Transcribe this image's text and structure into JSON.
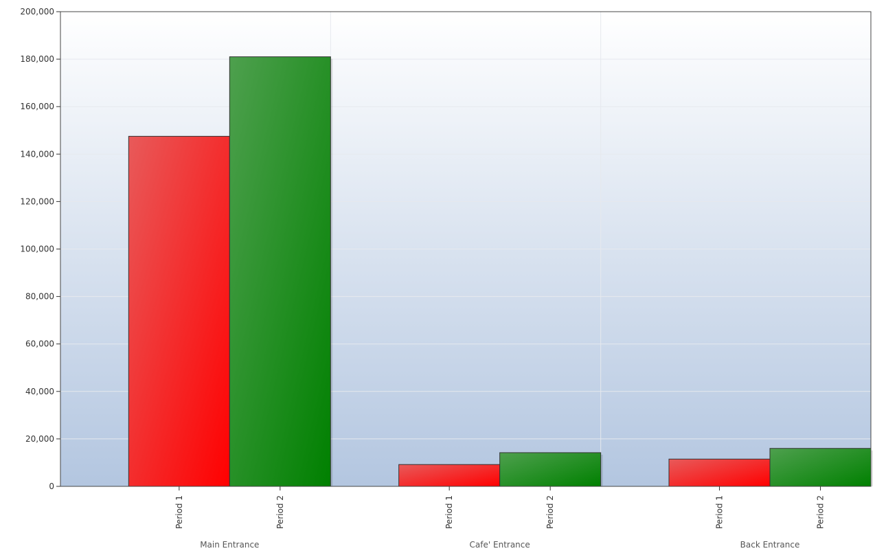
{
  "chart_data": {
    "type": "bar",
    "title": "",
    "xlabel": "",
    "ylabel": "",
    "ylim": [
      0,
      200000
    ],
    "yticks": [
      0,
      20000,
      40000,
      60000,
      80000,
      100000,
      120000,
      140000,
      160000,
      180000,
      200000
    ],
    "ytick_labels": [
      "0",
      "20,000",
      "40,000",
      "60,000",
      "80,000",
      "100,000",
      "120,000",
      "140,000",
      "160,000",
      "180,000",
      "200,000"
    ],
    "grid": true,
    "legend": "none",
    "groups": [
      {
        "label": "Main Entrance",
        "bars": [
          {
            "label": "Period 1",
            "value": 147500,
            "color": "#ff0000"
          },
          {
            "label": "Period 2",
            "value": 181000,
            "color": "#008000"
          }
        ]
      },
      {
        "label": "Cafe' Entrance",
        "bars": [
          {
            "label": "Period 1",
            "value": 9200,
            "color": "#ff0000"
          },
          {
            "label": "Period 2",
            "value": 14200,
            "color": "#008000"
          }
        ]
      },
      {
        "label": "Back Entrance",
        "bars": [
          {
            "label": "Period 1",
            "value": 11500,
            "color": "#ff0000"
          },
          {
            "label": "Period 2",
            "value": 16000,
            "color": "#008000"
          }
        ]
      }
    ]
  },
  "colors": {
    "period1": "#ff0000",
    "period2": "#008000",
    "plot_bg_top": "#ffffff",
    "plot_bg_bottom": "#b3c6e0",
    "grid": "#e6e9ee",
    "axis": "#333333"
  }
}
